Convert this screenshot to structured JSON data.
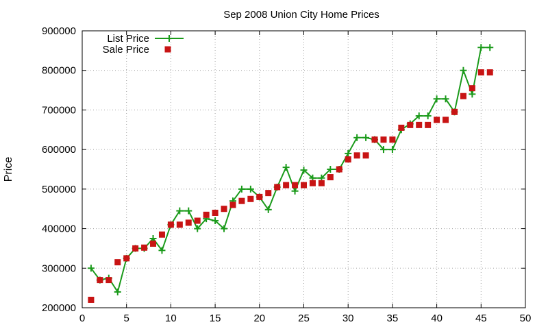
{
  "chart_data": {
    "type": "line",
    "title": "Sep 2008 Union City Home Prices",
    "xlabel": "",
    "ylabel": "Price",
    "xlim": [
      0,
      50
    ],
    "ylim": [
      200000,
      900000
    ],
    "x_ticks": [
      "0",
      "5",
      "10",
      "15",
      "20",
      "25",
      "30",
      "35",
      "40",
      "45",
      "50"
    ],
    "y_ticks": [
      "200000",
      "300000",
      "400000",
      "500000",
      "600000",
      "700000",
      "800000",
      "900000"
    ],
    "grid": true,
    "legend_position": "top-left",
    "series": [
      {
        "name": "List Price",
        "style": "line-points",
        "color": "#1a9a1a",
        "x": [
          1,
          2,
          3,
          4,
          5,
          6,
          7,
          8,
          9,
          10,
          11,
          12,
          13,
          14,
          15,
          16,
          17,
          18,
          19,
          20,
          21,
          22,
          23,
          24,
          25,
          26,
          27,
          28,
          29,
          30,
          31,
          32,
          33,
          34,
          35,
          36,
          37,
          38,
          39,
          40,
          41,
          42,
          43,
          44,
          45,
          46
        ],
        "values": [
          300000,
          270000,
          275000,
          240000,
          325000,
          350000,
          350000,
          375000,
          345000,
          410000,
          445000,
          445000,
          400000,
          425000,
          420000,
          400000,
          470000,
          500000,
          500000,
          480000,
          448000,
          505000,
          555000,
          495000,
          548000,
          528000,
          528000,
          550000,
          550000,
          590000,
          630000,
          630000,
          625000,
          600000,
          600000,
          650000,
          665000,
          685000,
          685000,
          728000,
          728000,
          695000,
          800000,
          740000,
          858000,
          858000
        ]
      },
      {
        "name": "Sale Price",
        "style": "points",
        "color": "#c81414",
        "x": [
          1,
          2,
          3,
          4,
          5,
          6,
          7,
          8,
          9,
          10,
          11,
          12,
          13,
          14,
          15,
          16,
          17,
          18,
          19,
          20,
          21,
          22,
          23,
          24,
          25,
          26,
          27,
          28,
          29,
          30,
          31,
          32,
          33,
          34,
          35,
          36,
          37,
          38,
          39,
          40,
          41,
          42,
          43,
          44,
          45,
          46
        ],
        "values": [
          220000,
          270000,
          270000,
          315000,
          325000,
          350000,
          352000,
          362000,
          385000,
          410000,
          410000,
          415000,
          420000,
          435000,
          440000,
          450000,
          460000,
          470000,
          475000,
          480000,
          490000,
          505000,
          510000,
          510000,
          510000,
          515000,
          515000,
          530000,
          550000,
          575000,
          585000,
          585000,
          625000,
          625000,
          625000,
          655000,
          662000,
          662000,
          662000,
          675000,
          675000,
          695000,
          735000,
          755000,
          795000,
          795000
        ]
      }
    ]
  }
}
